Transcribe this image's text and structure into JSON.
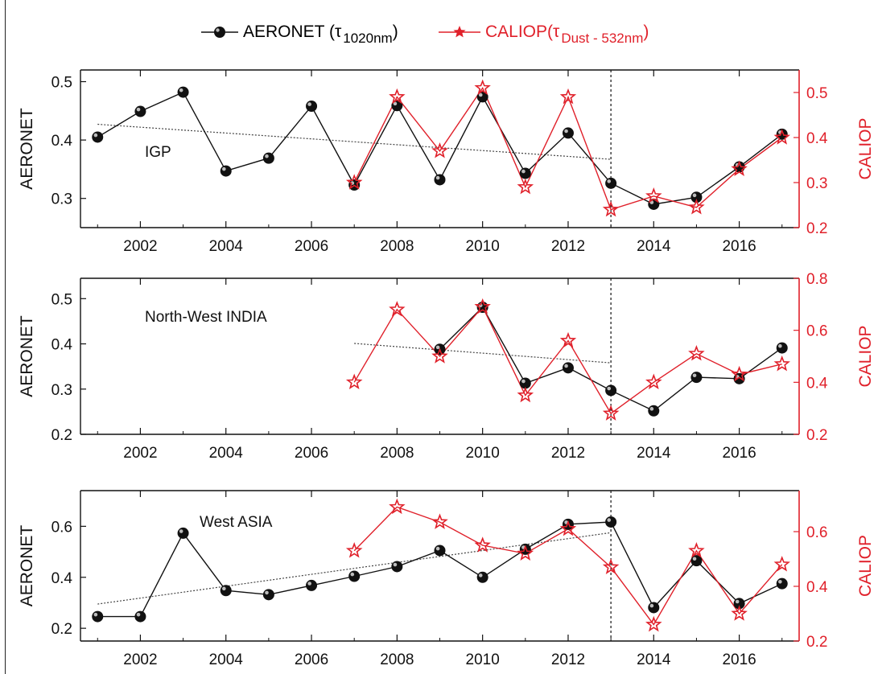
{
  "legend": {
    "aeronet": {
      "main": "AERONET (τ",
      "sub": "1020nm",
      "close": ")",
      "color": "#111111"
    },
    "caliop": {
      "main": "CALIOP(τ",
      "sub": "Dust - 532nm",
      "close": ")",
      "color": "#e0202a"
    }
  },
  "colors": {
    "aeronet": "#111111",
    "caliop": "#e0202a",
    "trend": "#444444",
    "axis": "#111111"
  },
  "chart_data": [
    {
      "type": "line",
      "title": "IGP",
      "xlabel": "",
      "ylabel": "AERONET",
      "y2label": "CALIOP",
      "xlim": [
        2000.6,
        2017.4
      ],
      "ylim": [
        0.25,
        0.52
      ],
      "y2lim": [
        0.2,
        0.55
      ],
      "xticks": [
        2002,
        2004,
        2006,
        2008,
        2010,
        2012,
        2014,
        2016
      ],
      "yticks": [
        0.3,
        0.4,
        0.5
      ],
      "y2ticks": [
        0.2,
        0.3,
        0.4,
        0.5
      ],
      "divider_x": 2013,
      "series": [
        {
          "name": "AERONET (τ 1020nm)",
          "axis": "left",
          "marker": "circle",
          "x": [
            2001,
            2002,
            2003,
            2004,
            2005,
            2006,
            2007,
            2008,
            2009,
            2010,
            2011,
            2012,
            2013,
            2014,
            2015,
            2016,
            2017
          ],
          "values": [
            0.405,
            0.449,
            0.482,
            0.347,
            0.369,
            0.458,
            0.323,
            0.459,
            0.332,
            0.474,
            0.343,
            0.412,
            0.326,
            0.29,
            0.302,
            0.354,
            0.41
          ]
        },
        {
          "name": "CALIOP(τ Dust - 532nm)",
          "axis": "right",
          "marker": "star",
          "x": [
            2007,
            2008,
            2009,
            2010,
            2011,
            2012,
            2013,
            2014,
            2015,
            2016,
            2017
          ],
          "values": [
            0.3,
            0.49,
            0.37,
            0.51,
            0.29,
            0.49,
            0.24,
            0.27,
            0.245,
            0.33,
            0.4
          ]
        }
      ],
      "trend": {
        "axis": "left",
        "x": [
          2001,
          2013
        ],
        "values": [
          0.427,
          0.367
        ]
      }
    },
    {
      "type": "line",
      "title": "North-West INDIA",
      "xlabel": "",
      "ylabel": "AERONET",
      "y2label": "CALIOP",
      "xlim": [
        2000.6,
        2017.4
      ],
      "ylim": [
        0.2,
        0.545
      ],
      "y2lim": [
        0.2,
        0.8
      ],
      "xticks": [
        2002,
        2004,
        2006,
        2008,
        2010,
        2012,
        2014,
        2016
      ],
      "yticks": [
        0.2,
        0.3,
        0.4,
        0.5
      ],
      "y2ticks": [
        0.2,
        0.4,
        0.6,
        0.8
      ],
      "divider_x": 2013,
      "series": [
        {
          "name": "AERONET (τ 1020nm)",
          "axis": "left",
          "marker": "circle",
          "x": [
            2009,
            2010,
            2011,
            2012,
            2013,
            2014,
            2015,
            2016,
            2017
          ],
          "values": [
            0.388,
            0.481,
            0.313,
            0.347,
            0.297,
            0.252,
            0.326,
            0.323,
            0.391
          ]
        },
        {
          "name": "CALIOP(τ Dust - 532nm)",
          "axis": "right",
          "marker": "star",
          "x": [
            2007,
            2008,
            2009,
            2010,
            2011,
            2012,
            2013,
            2014,
            2015,
            2016,
            2017
          ],
          "values": [
            0.4,
            0.68,
            0.5,
            0.69,
            0.35,
            0.56,
            0.28,
            0.4,
            0.51,
            0.43,
            0.47
          ]
        }
      ],
      "trend": {
        "axis": "left",
        "x": [
          2007,
          2013
        ],
        "values": [
          0.401,
          0.358
        ]
      }
    },
    {
      "type": "line",
      "title": "West ASIA",
      "xlabel": "",
      "ylabel": "AERONET",
      "y2label": "CALIOP",
      "xlim": [
        2000.6,
        2017.4
      ],
      "ylim": [
        0.15,
        0.74
      ],
      "y2lim": [
        0.2,
        0.75
      ],
      "xticks": [
        2002,
        2004,
        2006,
        2008,
        2010,
        2012,
        2014,
        2016
      ],
      "yticks": [
        0.2,
        0.4,
        0.6
      ],
      "y2ticks": [
        0.2,
        0.4,
        0.6
      ],
      "divider_x": 2013,
      "series": [
        {
          "name": "AERONET (τ 1020nm)",
          "axis": "left",
          "marker": "circle",
          "x": [
            2001,
            2002,
            2003,
            2004,
            2005,
            2006,
            2007,
            2008,
            2009,
            2010,
            2011,
            2012,
            2013,
            2014,
            2015,
            2016,
            2017
          ],
          "values": [
            0.246,
            0.246,
            0.573,
            0.348,
            0.332,
            0.368,
            0.404,
            0.442,
            0.505,
            0.4,
            0.51,
            0.608,
            0.617,
            0.281,
            0.465,
            0.297,
            0.375
          ]
        },
        {
          "name": "CALIOP(τ Dust - 532nm)",
          "axis": "right",
          "marker": "star",
          "x": [
            2007,
            2008,
            2009,
            2010,
            2011,
            2012,
            2013,
            2014,
            2015,
            2016,
            2017
          ],
          "values": [
            0.53,
            0.69,
            0.635,
            0.55,
            0.52,
            0.61,
            0.47,
            0.26,
            0.53,
            0.3,
            0.48
          ]
        }
      ],
      "trend": {
        "axis": "left",
        "x": [
          2001,
          2013
        ],
        "values": [
          0.295,
          0.575
        ]
      }
    }
  ]
}
